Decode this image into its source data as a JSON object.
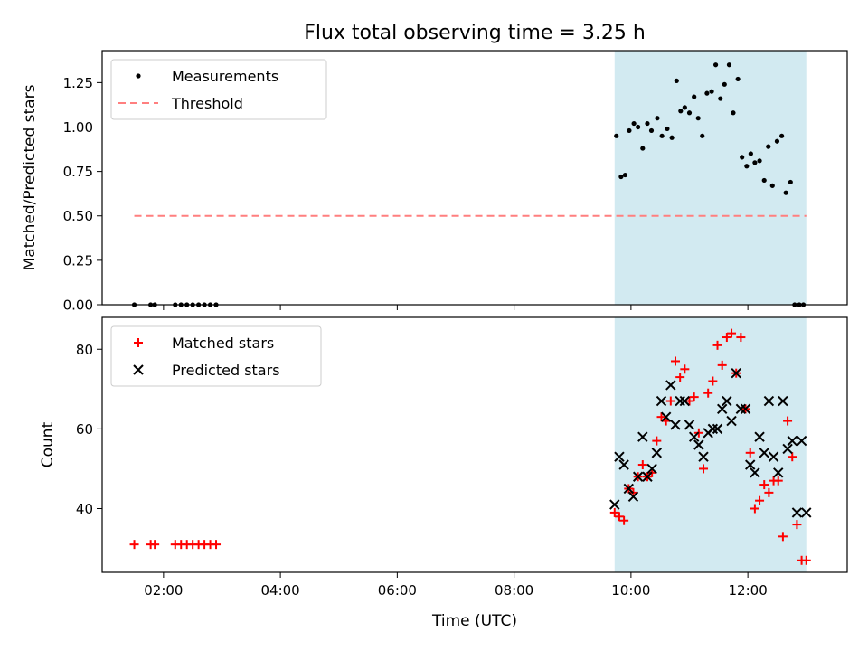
{
  "title": "Flux total observing time = 3.25 h",
  "colors": {
    "measurement": "#000000",
    "threshold": "#ff7f7f",
    "matched": "#ff0000",
    "predicted": "#000000",
    "highlight": "#add8e6"
  },
  "shared_x": {
    "label": "Time (UTC)",
    "unit": "hours_utc",
    "range": [
      0.95,
      13.7
    ],
    "ticks": [
      2,
      4,
      6,
      8,
      10,
      12
    ],
    "tick_labels": [
      "02:00",
      "04:00",
      "06:00",
      "08:00",
      "10:00",
      "12:00"
    ]
  },
  "chart_data": [
    {
      "type": "scatter",
      "ylabel": "Matched/Predicted stars",
      "ylim": [
        0,
        1.43
      ],
      "yticks": [
        0.0,
        0.25,
        0.5,
        0.75,
        1.0,
        1.25
      ],
      "ytick_labels": [
        "0.00",
        "0.25",
        "0.50",
        "0.75",
        "1.00",
        "1.25"
      ],
      "legend_position": "top-left",
      "highlight_x": [
        9.72,
        13.0
      ],
      "series": [
        {
          "name": "Measurements",
          "kind": "points",
          "x": [
            1.5,
            1.78,
            1.85,
            2.2,
            2.3,
            2.4,
            2.5,
            2.6,
            2.7,
            2.8,
            2.9,
            9.75,
            9.83,
            9.9,
            9.97,
            10.05,
            10.12,
            10.2,
            10.28,
            10.35,
            10.45,
            10.53,
            10.62,
            10.7,
            10.78,
            10.85,
            10.92,
            11.0,
            11.08,
            11.15,
            11.22,
            11.3,
            11.38,
            11.45,
            11.53,
            11.6,
            11.68,
            11.75,
            11.83,
            11.9,
            11.98,
            12.05,
            12.12,
            12.2,
            12.28,
            12.35,
            12.42,
            12.5,
            12.58,
            12.65,
            12.73,
            12.8,
            12.88,
            12.95
          ],
          "y": [
            0,
            0,
            0,
            0,
            0,
            0,
            0,
            0,
            0,
            0,
            0,
            0.95,
            0.72,
            0.73,
            0.98,
            1.02,
            1.0,
            0.88,
            1.02,
            0.98,
            1.05,
            0.95,
            0.99,
            0.94,
            1.26,
            1.09,
            1.11,
            1.08,
            1.17,
            1.05,
            0.95,
            1.19,
            1.2,
            1.35,
            1.16,
            1.24,
            1.35,
            1.08,
            1.27,
            0.83,
            0.78,
            0.85,
            0.8,
            0.81,
            0.7,
            0.89,
            0.67,
            0.92,
            0.95,
            0.63,
            0.69,
            0,
            0,
            0
          ]
        },
        {
          "name": "Threshold",
          "kind": "dashed-line",
          "x": [
            1.5,
            13.0
          ],
          "y": [
            0.5,
            0.5
          ]
        }
      ]
    },
    {
      "type": "scatter",
      "ylabel": "Count",
      "xlabel": "Time (UTC)",
      "ylim": [
        24,
        88
      ],
      "yticks": [
        40,
        60,
        80
      ],
      "ytick_labels": [
        "40",
        "60",
        "80"
      ],
      "legend_position": "top-left",
      "highlight_x": [
        9.72,
        13.0
      ],
      "series": [
        {
          "name": "Matched stars",
          "marker": "plus",
          "x": [
            1.5,
            1.78,
            1.85,
            2.2,
            2.3,
            2.4,
            2.5,
            2.6,
            2.7,
            2.8,
            2.9,
            9.72,
            9.8,
            9.88,
            9.96,
            10.04,
            10.12,
            10.2,
            10.28,
            10.36,
            10.44,
            10.52,
            10.6,
            10.68,
            10.76,
            10.84,
            10.92,
            11.0,
            11.08,
            11.16,
            11.24,
            11.32,
            11.4,
            11.48,
            11.56,
            11.64,
            11.72,
            11.8,
            11.88,
            11.96,
            12.04,
            12.12,
            12.2,
            12.28,
            12.36,
            12.44,
            12.52,
            12.6,
            12.68,
            12.76,
            12.84,
            12.92,
            13.0
          ],
          "y": [
            31,
            31,
            31,
            31,
            31,
            31,
            31,
            31,
            31,
            31,
            31,
            39,
            38,
            37,
            45,
            44,
            48,
            51,
            48,
            49,
            57,
            63,
            62,
            67,
            77,
            73,
            75,
            67,
            68,
            59,
            50,
            69,
            72,
            81,
            76,
            83,
            84,
            74,
            83,
            65,
            54,
            40,
            42,
            46,
            44,
            47,
            47,
            33,
            62,
            53,
            36,
            27,
            27
          ]
        },
        {
          "name": "Predicted stars",
          "marker": "x",
          "x": [
            9.72,
            9.8,
            9.88,
            9.96,
            10.04,
            10.12,
            10.2,
            10.28,
            10.36,
            10.44,
            10.52,
            10.6,
            10.68,
            10.76,
            10.84,
            10.92,
            11.0,
            11.08,
            11.16,
            11.24,
            11.32,
            11.4,
            11.48,
            11.56,
            11.64,
            11.72,
            11.8,
            11.88,
            11.96,
            12.04,
            12.12,
            12.2,
            12.28,
            12.36,
            12.44,
            12.52,
            12.6,
            12.68,
            12.76,
            12.84,
            12.92,
            13.0
          ],
          "y": [
            41,
            53,
            51,
            45,
            43,
            48,
            58,
            48,
            50,
            54,
            67,
            63,
            71,
            61,
            67,
            67,
            61,
            58,
            56,
            53,
            59,
            60,
            60,
            65,
            67,
            62,
            74,
            65,
            65,
            51,
            49,
            58,
            54,
            67,
            53,
            49,
            67,
            55,
            57,
            39,
            57,
            39
          ]
        }
      ]
    }
  ]
}
